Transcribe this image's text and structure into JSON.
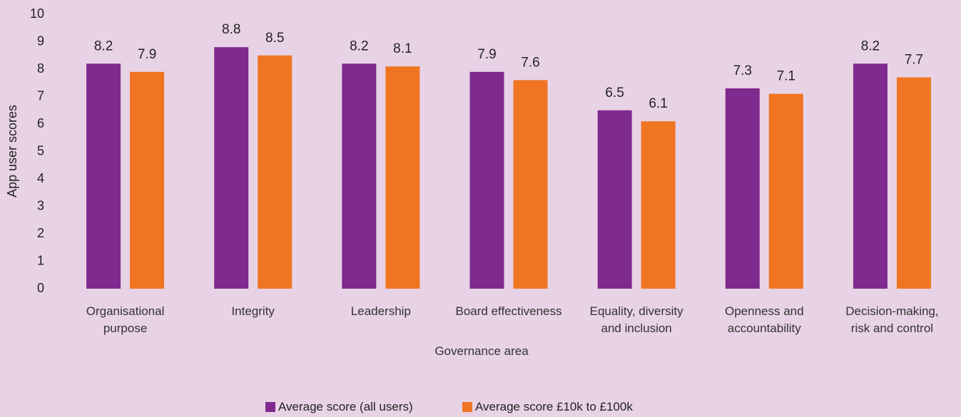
{
  "chart_data": {
    "type": "bar",
    "categories": [
      "Organisational purpose",
      "Integrity",
      "Leadership",
      "Board effectiveness",
      "Equality, diversity and inclusion",
      "Openness and accountability",
      "Decision-making, risk and control"
    ],
    "series": [
      {
        "name": "Average score (all users)",
        "color": "#7f2a8e",
        "values": [
          8.2,
          8.8,
          8.2,
          7.9,
          6.5,
          7.3,
          8.2
        ]
      },
      {
        "name": "Average score £10k to £100k",
        "color": "#f07522",
        "values": [
          7.9,
          8.5,
          8.1,
          7.6,
          6.1,
          7.1,
          7.7
        ]
      }
    ],
    "xlabel": "Governance area",
    "ylabel": "App user scores",
    "ylim": [
      0,
      10
    ],
    "yticks": [
      0,
      1,
      2,
      3,
      4,
      5,
      6,
      7,
      8,
      9,
      10
    ],
    "grid": false,
    "legend": "bottom"
  }
}
